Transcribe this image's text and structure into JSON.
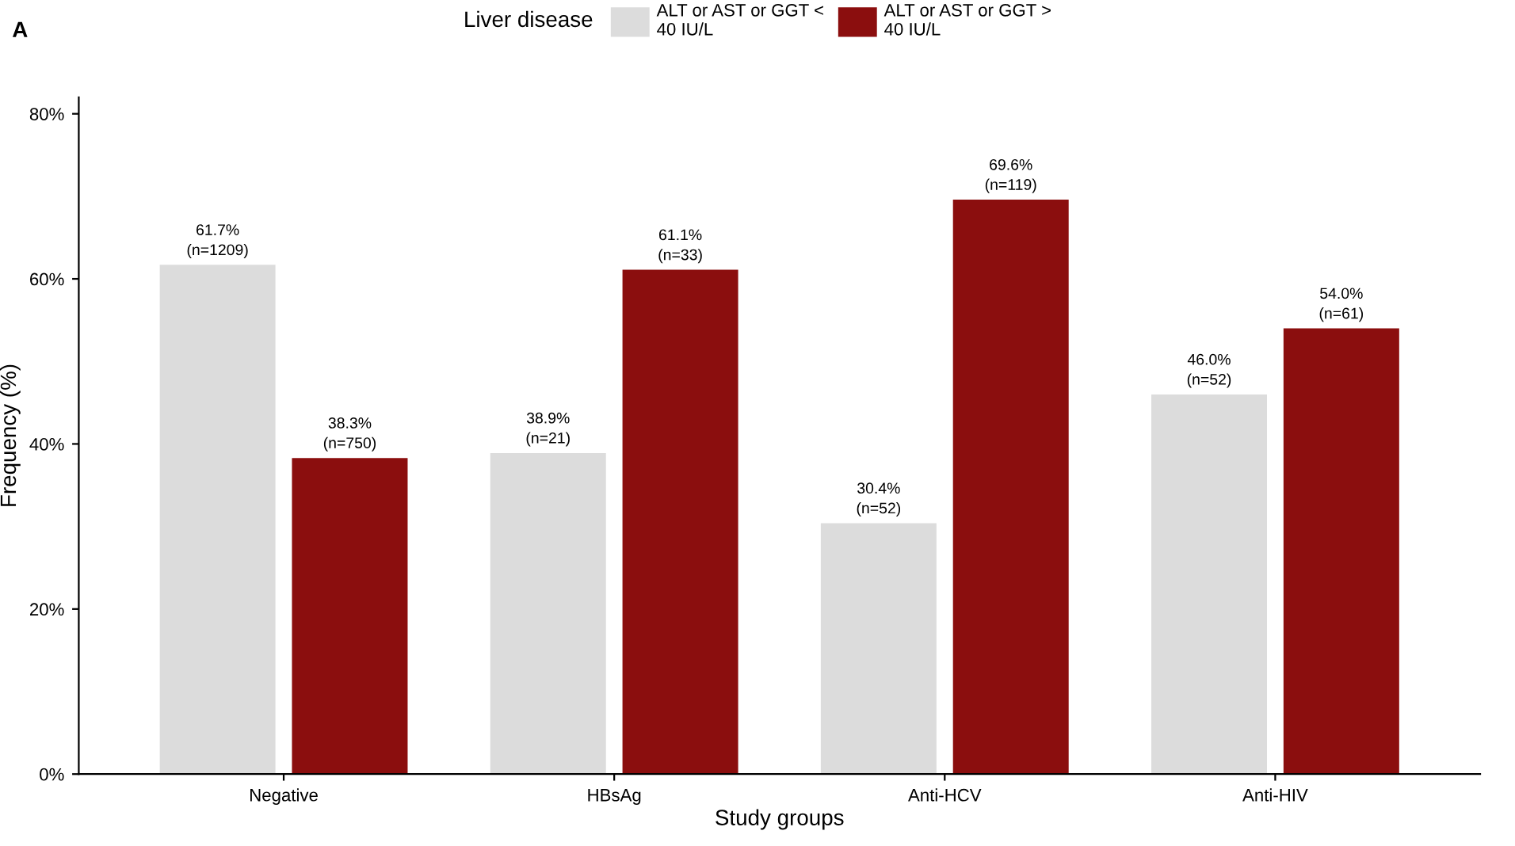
{
  "chart_data": {
    "type": "bar",
    "xlabel": "Study groups",
    "ylabel": "Frequency (%)",
    "legend_title": "Liver disease",
    "legend": "top",
    "grid": false,
    "annotations": [
      "A"
    ],
    "categories": [
      "Negative",
      "HBsAg",
      "Anti-HCV",
      "Anti-HIV"
    ],
    "series": [
      {
        "name": "ALT or AST or GGT < 40 IU/L",
        "color": "#dcdcdc",
        "values": [
          61.7,
          38.9,
          30.4,
          46.0
        ],
        "value_labels": [
          "61.7% (n=1209)",
          "38.9% (n=21)",
          "30.4% (n=52)",
          "46.0% (n=52)"
        ]
      },
      {
        "name": "ALT or AST or GGT > 40 IU/L",
        "color": "#8b0e0e",
        "values": [
          38.3,
          61.1,
          69.6,
          54.0
        ],
        "value_labels": [
          "38.3% (n=750)",
          "61.1% (n=33)",
          "69.6% (n=119)",
          "54.0% (n=61)"
        ]
      }
    ],
    "ylim": [
      0,
      82
    ],
    "yticks": [
      {
        "value": 0,
        "label": "0%"
      },
      {
        "value": 20,
        "label": "20%"
      },
      {
        "value": 40,
        "label": "40%"
      },
      {
        "value": 60,
        "label": "60%"
      },
      {
        "value": 80,
        "label": "80%"
      }
    ]
  }
}
